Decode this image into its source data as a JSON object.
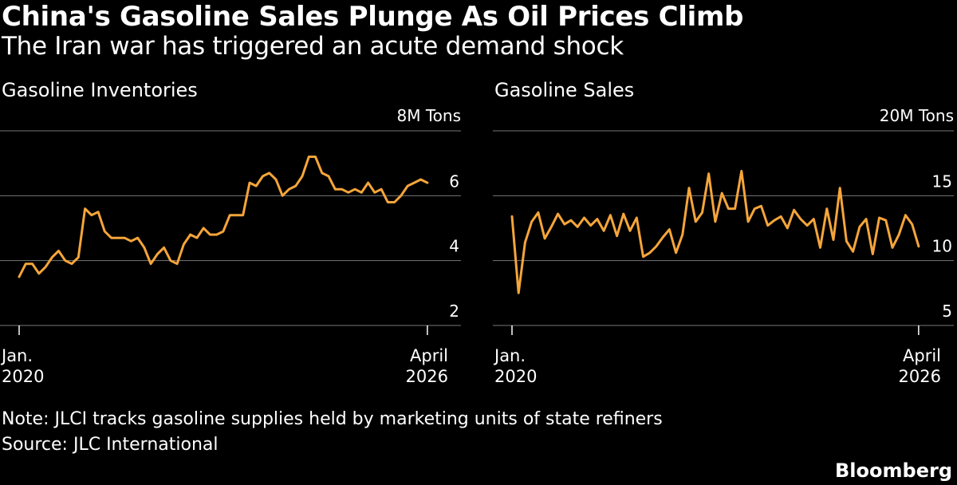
{
  "header": {
    "title": "China's Gasoline Sales Plunge As Oil Prices Climb",
    "subtitle": "The Iran war has triggered an acute demand shock"
  },
  "footer": {
    "note": "Note: JLCI tracks gasoline supplies held by marketing units of state refiners",
    "source": "Source: JLC International",
    "brand": "Bloomberg"
  },
  "colors": {
    "line": "#f5a53a",
    "grid": "#777777",
    "background": "#000000",
    "text": "#ffffff"
  },
  "chart_data": [
    {
      "type": "line",
      "title": "Gasoline Inventories",
      "unit_label": "8M Tons",
      "ylim": [
        2,
        8
      ],
      "yticks": [
        2,
        4,
        6
      ],
      "xlim": [
        2020.0,
        2026.25
      ],
      "xtick_labels": [
        [
          "Jan.",
          "2020"
        ],
        [
          "April",
          "2026"
        ]
      ],
      "grid": true,
      "x": [
        2020.0,
        2020.1,
        2020.2,
        2020.3,
        2020.4,
        2020.5,
        2020.6,
        2020.7,
        2020.8,
        2020.9,
        2021.0,
        2021.1,
        2021.2,
        2021.3,
        2021.4,
        2021.5,
        2021.6,
        2021.7,
        2021.8,
        2021.9,
        2022.0,
        2022.1,
        2022.2,
        2022.3,
        2022.4,
        2022.5,
        2022.6,
        2022.7,
        2022.8,
        2022.9,
        2023.0,
        2023.1,
        2023.2,
        2023.3,
        2023.4,
        2023.5,
        2023.6,
        2023.7,
        2023.8,
        2023.9,
        2024.0,
        2024.1,
        2024.2,
        2024.3,
        2024.4,
        2024.5,
        2024.6,
        2024.7,
        2024.8,
        2024.9,
        2025.0,
        2025.1,
        2025.2,
        2025.3,
        2025.4,
        2025.5,
        2025.6,
        2025.7,
        2025.8,
        2025.9,
        2026.0,
        2026.1,
        2026.2
      ],
      "values": [
        3.5,
        3.9,
        3.9,
        3.6,
        3.8,
        4.1,
        4.3,
        4.0,
        3.9,
        4.1,
        5.6,
        5.4,
        5.5,
        4.9,
        4.7,
        4.7,
        4.7,
        4.6,
        4.7,
        4.4,
        3.9,
        4.2,
        4.4,
        4.0,
        3.9,
        4.5,
        4.8,
        4.7,
        5.0,
        4.8,
        4.8,
        4.9,
        5.4,
        5.4,
        5.4,
        6.4,
        6.3,
        6.6,
        6.7,
        6.5,
        6.0,
        6.2,
        6.3,
        6.6,
        7.2,
        7.2,
        6.7,
        6.6,
        6.2,
        6.2,
        6.1,
        6.2,
        6.1,
        6.4,
        6.1,
        6.2,
        5.8,
        5.8,
        6.0,
        6.3,
        6.4,
        6.5,
        6.4
      ]
    },
    {
      "type": "line",
      "title": "Gasoline Sales",
      "unit_label": "20M Tons",
      "ylim": [
        5,
        20
      ],
      "yticks": [
        5,
        10,
        15
      ],
      "xlim": [
        2020.0,
        2026.25
      ],
      "xtick_labels": [
        [
          "Jan.",
          "2020"
        ],
        [
          "April",
          "2026"
        ]
      ],
      "grid": true,
      "x": [
        2020.0,
        2020.1,
        2020.2,
        2020.3,
        2020.4,
        2020.5,
        2020.6,
        2020.7,
        2020.8,
        2020.9,
        2021.0,
        2021.1,
        2021.2,
        2021.3,
        2021.4,
        2021.5,
        2021.6,
        2021.7,
        2021.8,
        2021.9,
        2022.0,
        2022.1,
        2022.2,
        2022.3,
        2022.4,
        2022.5,
        2022.6,
        2022.7,
        2022.8,
        2022.9,
        2023.0,
        2023.1,
        2023.2,
        2023.3,
        2023.4,
        2023.5,
        2023.6,
        2023.7,
        2023.8,
        2023.9,
        2024.0,
        2024.1,
        2024.2,
        2024.3,
        2024.4,
        2024.5,
        2024.6,
        2024.7,
        2024.8,
        2024.9,
        2025.0,
        2025.1,
        2025.2,
        2025.3,
        2025.4,
        2025.5,
        2025.6,
        2025.7,
        2025.8,
        2025.9,
        2026.0,
        2026.1,
        2026.2
      ],
      "values": [
        13.4,
        7.5,
        11.4,
        13.0,
        13.7,
        11.7,
        12.6,
        13.6,
        12.8,
        13.1,
        12.6,
        13.3,
        12.7,
        13.2,
        12.3,
        13.5,
        11.9,
        13.6,
        12.3,
        13.3,
        10.3,
        10.6,
        11.1,
        11.8,
        12.4,
        10.6,
        12.0,
        15.6,
        13.0,
        13.7,
        16.7,
        13.0,
        15.2,
        14.0,
        14.0,
        16.9,
        13.0,
        14.0,
        14.2,
        12.7,
        13.1,
        13.4,
        12.5,
        13.9,
        13.2,
        12.7,
        13.2,
        11.0,
        14.0,
        11.6,
        15.6,
        11.5,
        10.7,
        12.6,
        13.2,
        10.5,
        13.3,
        13.1,
        11.0,
        12.0,
        13.5,
        12.8,
        11.1
      ]
    }
  ]
}
